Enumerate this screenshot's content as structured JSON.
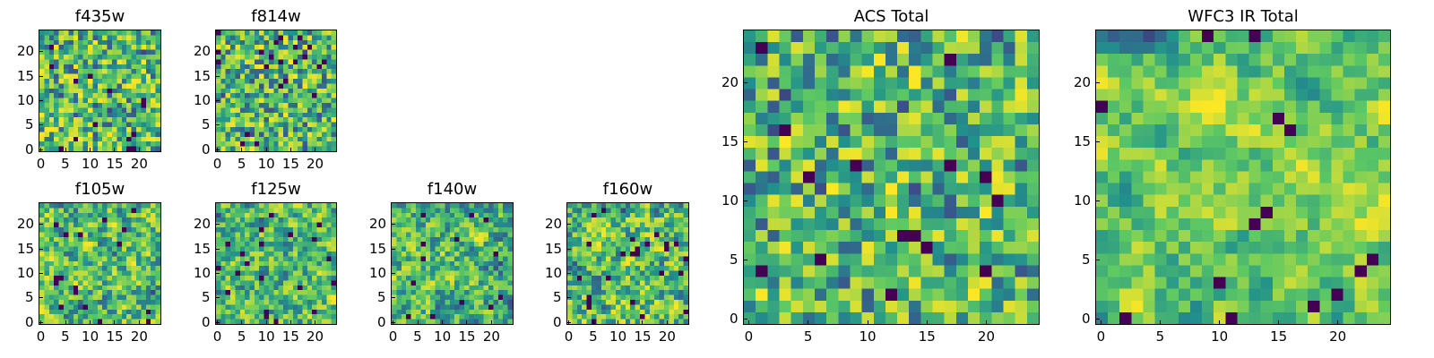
{
  "figure": {
    "colormap": "viridis",
    "colormap_stops": [
      "#440154",
      "#3b528b",
      "#21918c",
      "#5ec962",
      "#fde725"
    ],
    "pixels_per_axis": 25,
    "value_range_note": "pixel values drawn from seeded noise"
  },
  "chart_data": [
    {
      "type": "heatmap",
      "title": "f435w",
      "xticks": [
        "0",
        "5",
        "10",
        "15",
        "20"
      ],
      "yticks": [
        "0",
        "5",
        "10",
        "15",
        "20"
      ],
      "xlim": [
        -0.5,
        24.5
      ],
      "ylim": [
        -0.5,
        24.5
      ],
      "grid": false,
      "seed": 11,
      "smooth": 0
    },
    {
      "type": "heatmap",
      "title": "f814w",
      "xticks": [
        "0",
        "5",
        "10",
        "15",
        "20"
      ],
      "yticks": [
        "0",
        "5",
        "10",
        "15",
        "20"
      ],
      "xlim": [
        -0.5,
        24.5
      ],
      "ylim": [
        -0.5,
        24.5
      ],
      "grid": false,
      "seed": 23,
      "smooth": 0
    },
    {
      "type": "heatmap",
      "title": "f105w",
      "xticks": [
        "0",
        "5",
        "10",
        "15",
        "20"
      ],
      "yticks": [
        "0",
        "5",
        "10",
        "15",
        "20"
      ],
      "xlim": [
        -0.5,
        24.5
      ],
      "ylim": [
        -0.5,
        24.5
      ],
      "grid": false,
      "seed": 37,
      "smooth": 1
    },
    {
      "type": "heatmap",
      "title": "f125w",
      "xticks": [
        "0",
        "5",
        "10",
        "15",
        "20"
      ],
      "yticks": [
        "0",
        "5",
        "10",
        "15",
        "20"
      ],
      "xlim": [
        -0.5,
        24.5
      ],
      "ylim": [
        -0.5,
        24.5
      ],
      "grid": false,
      "seed": 41,
      "smooth": 1
    },
    {
      "type": "heatmap",
      "title": "f140w",
      "xticks": [
        "0",
        "5",
        "10",
        "15",
        "20"
      ],
      "yticks": [
        "0",
        "5",
        "10",
        "15",
        "20"
      ],
      "xlim": [
        -0.5,
        24.5
      ],
      "ylim": [
        -0.5,
        24.5
      ],
      "grid": false,
      "seed": 53,
      "smooth": 1
    },
    {
      "type": "heatmap",
      "title": "f160w",
      "xticks": [
        "0",
        "5",
        "10",
        "15",
        "20"
      ],
      "yticks": [
        "0",
        "5",
        "10",
        "15",
        "20"
      ],
      "xlim": [
        -0.5,
        24.5
      ],
      "ylim": [
        -0.5,
        24.5
      ],
      "grid": false,
      "seed": 67,
      "smooth": 1
    },
    {
      "type": "heatmap",
      "title": "ACS Total",
      "xticks": [
        "0",
        "5",
        "10",
        "15",
        "20"
      ],
      "yticks": [
        "0",
        "5",
        "10",
        "15",
        "20"
      ],
      "xlim": [
        -0.5,
        24.5
      ],
      "ylim": [
        -0.5,
        24.5
      ],
      "grid": false,
      "seed": 79,
      "smooth": 0
    },
    {
      "type": "heatmap",
      "title": "WFC3 IR Total",
      "xticks": [
        "0",
        "5",
        "10",
        "15",
        "20"
      ],
      "yticks": [
        "0",
        "5",
        "10",
        "15",
        "20"
      ],
      "xlim": [
        -0.5,
        24.5
      ],
      "ylim": [
        -0.5,
        24.5
      ],
      "grid": false,
      "seed": 97,
      "smooth": 2
    }
  ]
}
